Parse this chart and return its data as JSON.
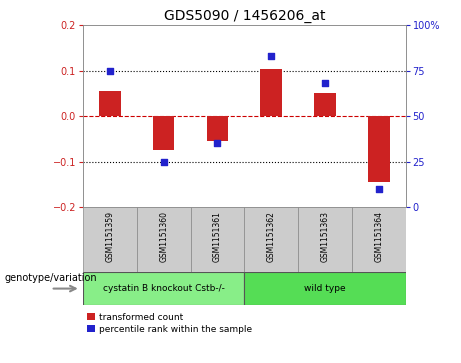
{
  "title": "GDS5090 / 1456206_at",
  "samples": [
    "GSM1151359",
    "GSM1151360",
    "GSM1151361",
    "GSM1151362",
    "GSM1151363",
    "GSM1151364"
  ],
  "bar_values": [
    0.055,
    -0.075,
    -0.055,
    0.105,
    0.05,
    -0.145
  ],
  "percentile_values": [
    75,
    25,
    35,
    83,
    68,
    10
  ],
  "ylim_left": [
    -0.2,
    0.2
  ],
  "ylim_right": [
    0,
    100
  ],
  "yticks_left": [
    -0.2,
    -0.1,
    0.0,
    0.1,
    0.2
  ],
  "yticks_right": [
    0,
    25,
    50,
    75,
    100
  ],
  "bar_color": "#cc2222",
  "dot_color": "#2222cc",
  "bg_color": "#ffffff",
  "sample_box_color": "#cccccc",
  "groups": [
    {
      "label": "cystatin B knockout Cstb-/-",
      "samples": [
        0,
        1,
        2
      ],
      "color": "#88ee88"
    },
    {
      "label": "wild type",
      "samples": [
        3,
        4,
        5
      ],
      "color": "#55dd55"
    }
  ],
  "genotype_label": "genotype/variation",
  "legend_bar_label": "transformed count",
  "legend_dot_label": "percentile rank within the sample",
  "zero_line_color": "#cc0000",
  "dotted_line_color": "#000000",
  "title_fontsize": 10,
  "tick_fontsize": 7,
  "sample_fontsize": 5.5,
  "group_fontsize": 6.5,
  "legend_fontsize": 6.5,
  "genotype_fontsize": 7
}
